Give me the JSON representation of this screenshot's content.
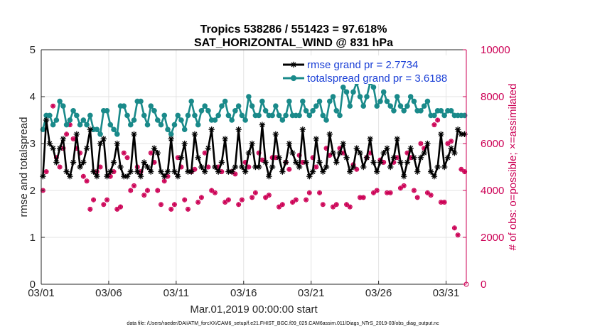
{
  "chart_data": {
    "type": "line",
    "title": "Tropics 538286 / 551423 = 97.618%",
    "subtitle": "SAT_HORIZONTAL_WIND @ 831 hPa",
    "xlabel": "Mar.01,2019 00:00:00 start",
    "ylabel": "rmse and totalspread",
    "ylabel_right": "# of obs: o=possible; ×=assimilated",
    "footnote": "data file: /Users/raeder/DAI/ATM_forcXX/CAM6_setup/f.e21.FHIST_BGC.f09_025.CAM6assim.011/Diags_NTrS_2019-03/obs_diag_output.nc",
    "xlim": [
      0,
      31.5
    ],
    "ylim": [
      0,
      5
    ],
    "ylim_right": [
      0,
      10000
    ],
    "x_ticks": [
      0,
      5,
      10,
      15,
      20,
      25,
      30
    ],
    "x_tick_labels": [
      "03/01",
      "03/06",
      "03/11",
      "03/16",
      "03/21",
      "03/26",
      "03/31"
    ],
    "y_ticks": [
      0,
      1,
      2,
      3,
      4,
      5
    ],
    "y_tick_labels": [
      "0",
      "1",
      "2",
      "3",
      "4",
      "5"
    ],
    "y_right_ticks": [
      0,
      2000,
      4000,
      6000,
      8000,
      10000
    ],
    "y_right_tick_labels": [
      "0",
      "2000",
      "4000",
      "6000",
      "8000",
      "10000"
    ],
    "grid": true,
    "legend_position": "top-right",
    "series": [
      {
        "name": "rmse grand pr = 2.7734",
        "color": "#000000",
        "marker": "asterisk",
        "x_start": 0.125,
        "x_step": 0.25,
        "values": [
          2.3,
          3.5,
          3.0,
          2.9,
          2.6,
          2.9,
          3.1,
          2.4,
          2.3,
          2.6,
          3.2,
          2.5,
          2.6,
          2.9,
          3.3,
          2.4,
          2.3,
          3.0,
          3.1,
          2.3,
          2.4,
          2.6,
          3.0,
          2.5,
          2.3,
          2.3,
          2.4,
          3.2,
          2.4,
          2.3,
          2.6,
          2.5,
          2.4,
          2.9,
          2.8,
          2.4,
          2.3,
          2.4,
          3.1,
          2.4,
          2.3,
          2.7,
          3.0,
          2.4,
          2.4,
          3.2,
          2.7,
          2.5,
          2.4,
          2.9,
          3.3,
          2.5,
          2.4,
          2.6,
          3.1,
          2.4,
          2.4,
          2.5,
          3.3,
          2.5,
          2.4,
          2.8,
          3.0,
          2.5,
          2.5,
          3.4,
          2.6,
          2.3,
          2.5,
          3.2,
          2.7,
          2.4,
          2.6,
          3.0,
          2.8,
          2.6,
          2.5,
          3.3,
          2.6,
          2.3,
          2.4,
          3.1,
          2.6,
          2.4,
          2.5,
          3.2,
          2.8,
          2.6,
          2.8,
          3.0,
          2.7,
          2.4,
          2.5,
          2.9,
          2.8,
          2.5,
          2.7,
          3.1,
          2.6,
          2.4,
          2.6,
          2.8,
          2.9,
          2.5,
          2.7,
          3.1,
          2.6,
          2.3,
          2.6,
          2.9,
          2.7,
          2.4,
          2.7,
          2.8,
          3.0,
          2.4,
          2.3,
          2.5,
          3.2,
          2.5,
          2.7,
          2.9,
          2.8,
          3.3,
          3.2,
          3.2
        ]
      },
      {
        "name": "totalspread grand pr = 3.6188",
        "color": "#1a8a8a",
        "marker": "circle",
        "x_start": 0.125,
        "x_step": 0.25,
        "values": [
          3.3,
          3.6,
          3.6,
          3.4,
          3.5,
          3.9,
          3.8,
          3.4,
          3.5,
          3.7,
          3.6,
          3.4,
          3.5,
          3.4,
          3.6,
          3.3,
          3.3,
          3.2,
          3.7,
          3.7,
          3.4,
          3.3,
          3.2,
          3.8,
          3.8,
          3.6,
          3.4,
          3.5,
          3.9,
          3.9,
          3.6,
          3.4,
          3.8,
          3.7,
          3.5,
          3.4,
          3.6,
          3.3,
          3.2,
          3.4,
          3.6,
          3.5,
          3.3,
          3.6,
          3.9,
          3.6,
          3.4,
          3.7,
          3.8,
          3.7,
          3.5,
          3.5,
          3.6,
          3.8,
          3.9,
          3.6,
          3.5,
          3.7,
          3.8,
          3.6,
          3.5,
          4.0,
          3.8,
          3.6,
          3.6,
          3.9,
          3.7,
          3.6,
          3.6,
          3.8,
          3.6,
          3.5,
          3.6,
          3.9,
          3.6,
          3.6,
          3.6,
          3.9,
          3.7,
          3.6,
          3.7,
          3.8,
          3.9,
          3.6,
          3.5,
          3.9,
          4.0,
          3.7,
          3.6,
          4.2,
          4.1,
          3.8,
          4.1,
          4.3,
          4.0,
          3.8,
          4.0,
          4.3,
          4.2,
          3.8,
          3.9,
          4.1,
          3.9,
          3.8,
          3.7,
          4.0,
          3.8,
          3.7,
          3.8,
          4.0,
          3.9,
          3.7,
          3.7,
          3.8,
          3.9,
          3.6,
          3.6,
          3.7,
          3.7,
          3.6,
          3.7,
          3.7,
          3.6,
          3.6,
          3.6,
          3.6
        ]
      }
    ],
    "obs_possible": {
      "color": "#cc0055",
      "marker": "circle",
      "axis": "right",
      "values": [
        4000,
        4800,
        7200,
        7600,
        5400,
        5000,
        5800,
        6400,
        6800,
        6200,
        5800,
        5600,
        4600,
        4400,
        3200,
        3600,
        4800,
        5000,
        3400,
        3600,
        4600,
        4800,
        3200,
        3300,
        5600,
        5400,
        4000,
        4200,
        5000,
        4800,
        3800,
        4000,
        5600,
        5200,
        4000,
        3400,
        4400,
        4600,
        3200,
        3400,
        5400,
        5000,
        3600,
        3200,
        4800,
        4900,
        3500,
        3700,
        5600,
        5000,
        4000,
        3900,
        5000,
        4800,
        3500,
        3600,
        4800,
        4700,
        3400,
        3600,
        5200,
        5000,
        3700,
        3900,
        5600,
        5300,
        3700,
        3800,
        5400,
        5400,
        3300,
        3400,
        5200,
        4900,
        3500,
        3600,
        5500,
        5200,
        3600,
        3900,
        5400,
        5000,
        3900,
        3400,
        5800,
        5500,
        3300,
        3400,
        5800,
        5600,
        3400,
        3300,
        5100,
        4900,
        3700,
        3700,
        5400,
        5600,
        3900,
        4000,
        5300,
        5200,
        3900,
        3900,
        5200,
        5400,
        4100,
        4200,
        5600,
        5400,
        4000,
        3700,
        6000,
        5800,
        3900,
        3800,
        6800,
        7000,
        3500,
        3500,
        6000,
        6100,
        2400,
        2100,
        4900,
        4800
      ]
    },
    "obs_assimilated": {
      "color": "#cc0055",
      "marker": "asterisk",
      "axis": "right",
      "values": [
        4000,
        4800,
        7200,
        7600,
        5400,
        5000,
        5800,
        6400,
        6800,
        6200,
        5800,
        5600,
        4600,
        4400,
        3200,
        3600,
        4800,
        5000,
        3400,
        3600,
        4600,
        4800,
        3200,
        3300,
        5600,
        5400,
        4000,
        4200,
        5000,
        4800,
        3800,
        4000,
        5600,
        5200,
        4000,
        3400,
        4400,
        4600,
        3200,
        3400,
        5400,
        5000,
        3600,
        3200,
        4800,
        4900,
        3500,
        3700,
        5600,
        5000,
        4000,
        3900,
        5000,
        4800,
        3500,
        3600,
        4800,
        4700,
        3400,
        3600,
        5200,
        5000,
        3700,
        3900,
        5600,
        5300,
        3700,
        3800,
        5400,
        5400,
        3300,
        3400,
        5200,
        4900,
        3500,
        3600,
        5500,
        5200,
        3600,
        3900,
        5400,
        5000,
        3900,
        3400,
        5800,
        5500,
        3300,
        3400,
        5800,
        5600,
        3400,
        3300,
        5100,
        4900,
        3700,
        3700,
        5400,
        5600,
        3900,
        4000,
        5300,
        5200,
        3900,
        3900,
        5200,
        5400,
        4100,
        4200,
        5600,
        5400,
        4000,
        3700,
        6000,
        5800,
        3900,
        3800,
        6800,
        7000,
        3500,
        3500,
        6000,
        6100,
        2400,
        2100,
        4900,
        4800
      ]
    },
    "legend_items": [
      {
        "label": "rmse grand pr = 2.7734",
        "color": "#000000",
        "marker": "asterisk"
      },
      {
        "label": "totalspread grand pr = 3.6188",
        "color": "#1a8a8a",
        "marker": "circle"
      }
    ]
  }
}
